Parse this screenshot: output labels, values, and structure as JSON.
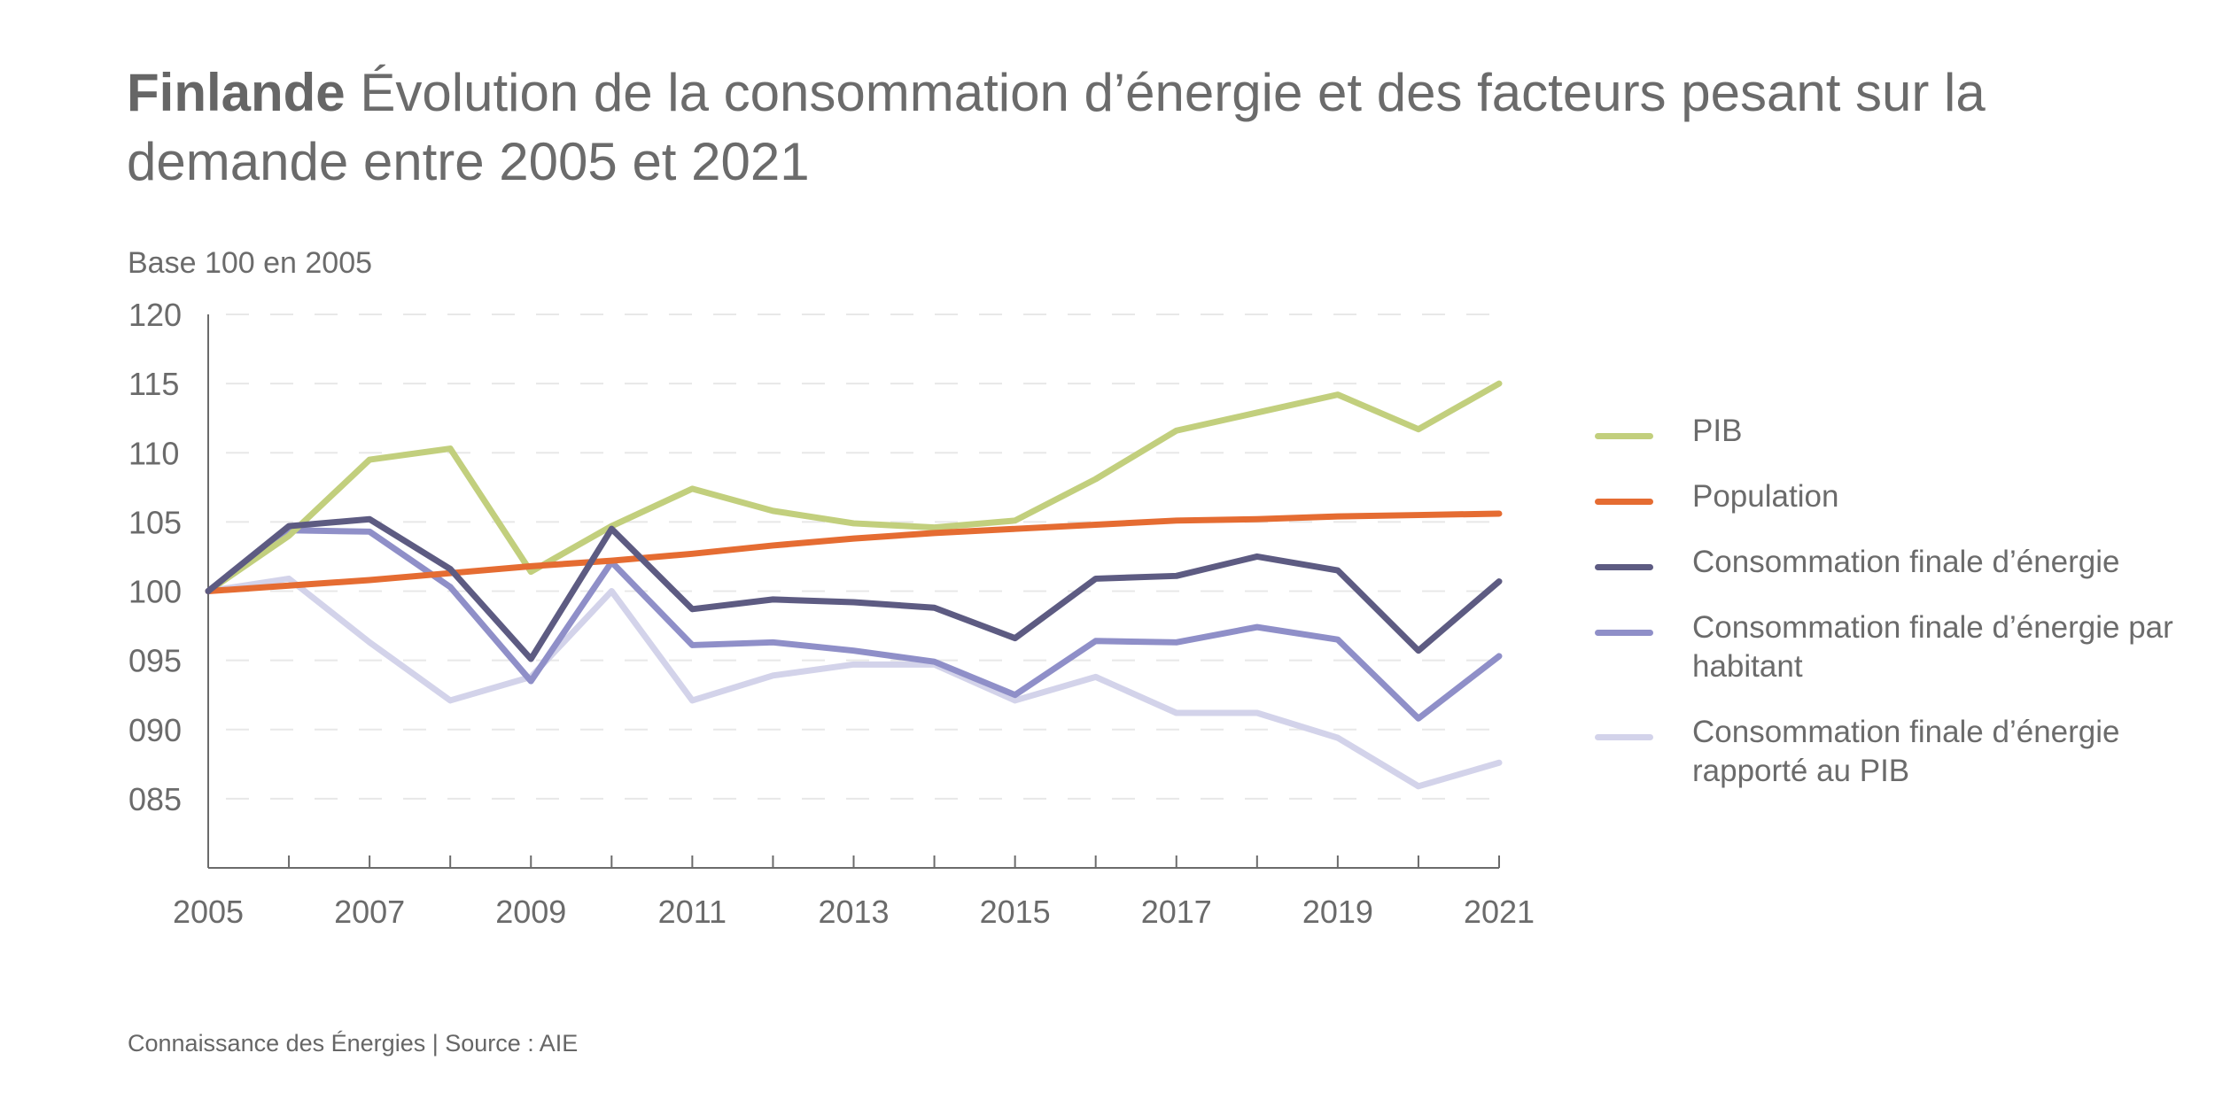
{
  "title": {
    "bold": "Finlande",
    "rest": " Évolution de la consommation d’énergie et des facteurs pesant sur la demande entre 2005 et 2021"
  },
  "footer": "Connaissance des Énergies | Source : AIE",
  "chart_data": {
    "type": "line",
    "title": "Finlande Évolution de la consommation d’énergie et des facteurs pesant sur la demande entre 2005 et 2021",
    "ylabel": "Base 100 en 2005",
    "xlabel": "",
    "x": [
      2005,
      2006,
      2007,
      2008,
      2009,
      2010,
      2011,
      2012,
      2013,
      2014,
      2015,
      2016,
      2017,
      2018,
      2019,
      2020,
      2021
    ],
    "xticks": [
      "2005",
      "2007",
      "2009",
      "2011",
      "2013",
      "2015",
      "2017",
      "2019",
      "2021"
    ],
    "yticks": [
      "120",
      "115",
      "110",
      "105",
      "100",
      "095",
      "090",
      "085"
    ],
    "ytick_values": [
      120,
      115,
      110,
      105,
      100,
      95,
      90,
      85
    ],
    "ylim": [
      80,
      120
    ],
    "xlim": [
      2005,
      2021
    ],
    "grid": "horizontal dashed",
    "legend_position": "right",
    "series": [
      {
        "name": "PIB",
        "color": "#c2cf7d",
        "values": [
          100,
          104.0,
          109.5,
          110.3,
          101.4,
          104.7,
          107.4,
          105.8,
          104.9,
          104.6,
          105.1,
          108.1,
          111.6,
          112.9,
          114.2,
          111.7,
          115.0
        ]
      },
      {
        "name": "Population",
        "color": "#e56c32",
        "values": [
          100,
          100.4,
          100.8,
          101.3,
          101.8,
          102.2,
          102.7,
          103.3,
          103.8,
          104.2,
          104.5,
          104.8,
          105.1,
          105.2,
          105.4,
          105.5,
          105.6
        ]
      },
      {
        "name": "Consommation finale d’énergie",
        "color": "#5d5b82",
        "values": [
          100,
          104.7,
          105.2,
          101.6,
          95.1,
          104.5,
          98.7,
          99.4,
          99.2,
          98.8,
          96.6,
          100.9,
          101.1,
          102.5,
          101.5,
          95.7,
          100.7
        ]
      },
      {
        "name": "Consommation finale d’énergie par habitant",
        "color": "#8f8fc8",
        "label_lines": [
          "Consommation finale d’énergie",
          "par habitant"
        ],
        "values": [
          100,
          104.4,
          104.3,
          100.3,
          93.5,
          102.1,
          96.1,
          96.3,
          95.7,
          94.9,
          92.5,
          96.4,
          96.3,
          97.4,
          96.5,
          90.8,
          95.3
        ]
      },
      {
        "name": "Consommation finale d’énergie rapporté au PIB",
        "color": "#d3d3ea",
        "label_lines": [
          "Consommation finale d’énergie",
          "rapporté au PIB"
        ],
        "values": [
          100,
          100.9,
          96.3,
          92.1,
          93.8,
          100.0,
          92.1,
          93.9,
          94.7,
          94.7,
          92.1,
          93.8,
          91.2,
          91.2,
          89.4,
          85.9,
          87.6
        ]
      }
    ]
  },
  "legend": [
    {
      "label": "PIB",
      "color": "#c2cf7d"
    },
    {
      "label": "Population",
      "color": "#e56c32"
    },
    {
      "label": "Consommation finale d’énergie",
      "color": "#5d5b82"
    },
    {
      "label": "Consommation finale d’énergie par habitant",
      "color": "#8f8fc8"
    },
    {
      "label": "Consommation finale d’énergie rapporté au PIB",
      "color": "#d3d3ea"
    }
  ]
}
